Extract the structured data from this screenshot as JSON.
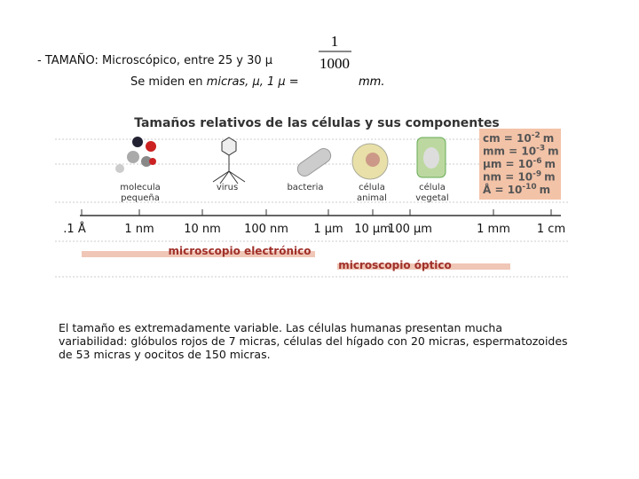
{
  "header": {
    "line1": "- TAMAÑO: Microscópico, entre 25 y 30 µ",
    "line2_start": "Se miden en",
    "line2_italic": "micras, µ, 1 µ =",
    "fraction_numerator": "1",
    "fraction_denominator": "1000",
    "fraction_unit": "mm."
  },
  "figure": {
    "title": "Tamaños relativos de las células y sus componentes",
    "units": [
      [
        "cm = 10",
        "-2",
        "m"
      ],
      [
        "mm = 10",
        "-3",
        "m"
      ],
      [
        "µm = 10",
        "-6",
        "m"
      ],
      [
        "nm = 10",
        "-9",
        "m"
      ],
      [
        "Å  = 10",
        "-10",
        "m"
      ]
    ],
    "objects": [
      "molecula pequeña",
      "virus",
      "bacteria",
      "célula animal",
      "célula vegetal"
    ],
    "scale": [
      ".1 Å",
      "1 nm",
      "10 nm",
      "100 nm",
      "1 µm",
      "10 µm",
      "100 µm",
      "1 mm",
      "1 cm"
    ],
    "electron_microscope": "microscopio electrónico",
    "optical_microscope": "microscopio óptico"
  },
  "body": {
    "paragraph": "El tamaño es extremadamente variable. Las células humanas presentan mucha variabilidad: glóbulos rojos de 7 micras, células del hígado con 20 micras, espermatozoides de 53 micras y oocitos de 150 micras."
  }
}
